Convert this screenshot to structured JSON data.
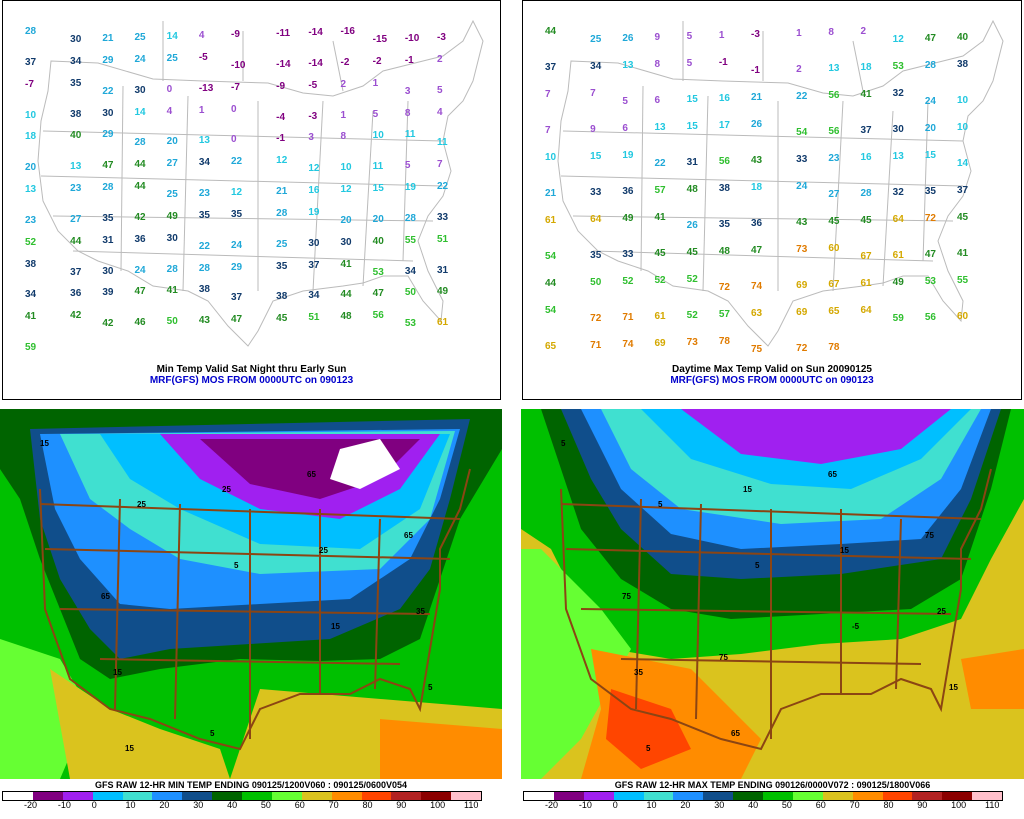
{
  "panels": {
    "min_mos": {
      "caption_line1": "Min Temp Valid Sat Night thru Early Sun",
      "caption_line2": "MRF(GFS) MOS FROM 0000UTC on 090123"
    },
    "max_mos": {
      "caption_line1": "Daytime Max Temp Valid on Sun 20090125",
      "caption_line2": "MRF(GFS) MOS FROM 0000UTC on 090123"
    },
    "min_raw": {
      "title": "GFS RAW 12-HR MIN TEMP ENDING 090125/1200V060 : 090125/0600V054"
    },
    "max_raw": {
      "title": "GFS RAW 12-HR MAX TEMP ENDING 090126/0000V072 : 090125/1800V066"
    }
  },
  "colorbar": {
    "ticks": [
      "-20",
      "-10",
      "0",
      "10",
      "20",
      "30",
      "40",
      "50",
      "60",
      "70",
      "80",
      "90",
      "100",
      "110"
    ],
    "colors": [
      "#ffffff",
      "#800080",
      "#a020f0",
      "#00bfff",
      "#40e0d0",
      "#1e90ff",
      "#104e8b",
      "#006400",
      "#00c000",
      "#66ff33",
      "#dac31e",
      "#ff8c00",
      "#ff4500",
      "#b22222",
      "#8b0000",
      "#ffc0cb"
    ]
  },
  "min_stations": [
    {
      "t": "28"
    },
    {
      "t": "30"
    },
    {
      "t": "21"
    },
    {
      "t": "25"
    },
    {
      "t": "14"
    },
    {
      "t": "4"
    },
    {
      "t": "-9"
    },
    {
      "t": "-11"
    },
    {
      "t": "-14"
    },
    {
      "t": "-16"
    },
    {
      "t": "-15"
    },
    {
      "t": "-10"
    },
    {
      "t": "-3"
    },
    {
      "t": "37"
    },
    {
      "t": "34"
    },
    {
      "t": "29"
    },
    {
      "t": "24"
    },
    {
      "t": "25"
    },
    {
      "t": "-5"
    },
    {
      "t": "-10"
    },
    {
      "t": "-14"
    },
    {
      "t": "-14"
    },
    {
      "t": "-2"
    },
    {
      "t": "-2"
    },
    {
      "t": "-1"
    },
    {
      "t": "2"
    },
    {
      "t": "-7"
    },
    {
      "t": "35"
    },
    {
      "t": "22"
    },
    {
      "t": "30"
    },
    {
      "t": "0"
    },
    {
      "t": "-13"
    },
    {
      "t": "-7"
    },
    {
      "t": "-9"
    },
    {
      "t": "-5"
    },
    {
      "t": "2"
    },
    {
      "t": "1"
    },
    {
      "t": "3"
    },
    {
      "t": "5"
    },
    {
      "t": "10"
    },
    {
      "t": "38"
    },
    {
      "t": "30"
    },
    {
      "t": "14"
    },
    {
      "t": "4"
    },
    {
      "t": "1"
    },
    {
      "t": "0"
    },
    {
      "t": "-4"
    },
    {
      "t": "-3"
    },
    {
      "t": "1"
    },
    {
      "t": "5"
    },
    {
      "t": "8"
    },
    {
      "t": "4"
    },
    {
      "t": "18"
    },
    {
      "t": "40"
    },
    {
      "t": "29"
    },
    {
      "t": "28"
    },
    {
      "t": "20"
    },
    {
      "t": "13"
    },
    {
      "t": "0"
    },
    {
      "t": "-1"
    },
    {
      "t": "3"
    },
    {
      "t": "8"
    },
    {
      "t": "10"
    },
    {
      "t": "11"
    },
    {
      "t": "11"
    },
    {
      "t": "20"
    },
    {
      "t": "13"
    },
    {
      "t": "47"
    },
    {
      "t": "44"
    },
    {
      "t": "27"
    },
    {
      "t": "34"
    },
    {
      "t": "22"
    },
    {
      "t": "12"
    },
    {
      "t": "12"
    },
    {
      "t": "10"
    },
    {
      "t": "11"
    },
    {
      "t": "5"
    },
    {
      "t": "7"
    },
    {
      "t": "13"
    },
    {
      "t": "23"
    },
    {
      "t": "28"
    },
    {
      "t": "44"
    },
    {
      "t": "25"
    },
    {
      "t": "23"
    },
    {
      "t": "12"
    },
    {
      "t": "21"
    },
    {
      "t": "16"
    },
    {
      "t": "12"
    },
    {
      "t": "15"
    },
    {
      "t": "19"
    },
    {
      "t": "22"
    },
    {
      "t": "23"
    },
    {
      "t": "27"
    },
    {
      "t": "35"
    },
    {
      "t": "42"
    },
    {
      "t": "49"
    },
    {
      "t": "35"
    },
    {
      "t": "35"
    },
    {
      "t": "28"
    },
    {
      "t": "19"
    },
    {
      "t": "20"
    },
    {
      "t": "20"
    },
    {
      "t": "28"
    },
    {
      "t": "33"
    },
    {
      "t": "52"
    },
    {
      "t": "44"
    },
    {
      "t": "31"
    },
    {
      "t": "36"
    },
    {
      "t": "30"
    },
    {
      "t": "22"
    },
    {
      "t": "24"
    },
    {
      "t": "25"
    },
    {
      "t": "30"
    },
    {
      "t": "30"
    },
    {
      "t": "40"
    },
    {
      "t": "55"
    },
    {
      "t": "51"
    },
    {
      "t": "38"
    },
    {
      "t": "37"
    },
    {
      "t": "30"
    },
    {
      "t": "24"
    },
    {
      "t": "28"
    },
    {
      "t": "28"
    },
    {
      "t": "29"
    },
    {
      "t": "35"
    },
    {
      "t": "37"
    },
    {
      "t": "41"
    },
    {
      "t": "53"
    },
    {
      "t": "34"
    },
    {
      "t": "31"
    },
    {
      "t": "34"
    },
    {
      "t": "36"
    },
    {
      "t": "39"
    },
    {
      "t": "47"
    },
    {
      "t": "41"
    },
    {
      "t": "38"
    },
    {
      "t": "37"
    },
    {
      "t": "38"
    },
    {
      "t": "34"
    },
    {
      "t": "44"
    },
    {
      "t": "47"
    },
    {
      "t": "50"
    },
    {
      "t": "49"
    },
    {
      "t": "41"
    },
    {
      "t": "42"
    },
    {
      "t": "42"
    },
    {
      "t": "46"
    },
    {
      "t": "50"
    },
    {
      "t": "43"
    },
    {
      "t": "47"
    },
    {
      "t": "45"
    },
    {
      "t": "51"
    },
    {
      "t": "48"
    },
    {
      "t": "56"
    },
    {
      "t": "53"
    },
    {
      "t": "61"
    },
    {
      "t": "59"
    }
  ],
  "max_stations": [
    {
      "t": "44"
    },
    {
      "t": "25"
    },
    {
      "t": "26"
    },
    {
      "t": "9"
    },
    {
      "t": "5"
    },
    {
      "t": "1"
    },
    {
      "t": "-3"
    },
    {
      "t": "1"
    },
    {
      "t": "8"
    },
    {
      "t": "2"
    },
    {
      "t": "12"
    },
    {
      "t": "47"
    },
    {
      "t": "40"
    },
    {
      "t": "37"
    },
    {
      "t": "34"
    },
    {
      "t": "13"
    },
    {
      "t": "8"
    },
    {
      "t": "5"
    },
    {
      "t": "-1"
    },
    {
      "t": "-1"
    },
    {
      "t": "2"
    },
    {
      "t": "13"
    },
    {
      "t": "18"
    },
    {
      "t": "53"
    },
    {
      "t": "28"
    },
    {
      "t": "38"
    },
    {
      "t": "7"
    },
    {
      "t": "7"
    },
    {
      "t": "5"
    },
    {
      "t": "6"
    },
    {
      "t": "15"
    },
    {
      "t": "16"
    },
    {
      "t": "21"
    },
    {
      "t": "22"
    },
    {
      "t": "56"
    },
    {
      "t": "41"
    },
    {
      "t": "32"
    },
    {
      "t": "24"
    },
    {
      "t": "10"
    },
    {
      "t": "7"
    },
    {
      "t": "9"
    },
    {
      "t": "6"
    },
    {
      "t": "13"
    },
    {
      "t": "15"
    },
    {
      "t": "17"
    },
    {
      "t": "26"
    },
    {
      "t": "54"
    },
    {
      "t": "56"
    },
    {
      "t": "37"
    },
    {
      "t": "30"
    },
    {
      "t": "20"
    },
    {
      "t": "10"
    },
    {
      "t": "10"
    },
    {
      "t": "15"
    },
    {
      "t": "19"
    },
    {
      "t": "22"
    },
    {
      "t": "31"
    },
    {
      "t": "56"
    },
    {
      "t": "43"
    },
    {
      "t": "33"
    },
    {
      "t": "23"
    },
    {
      "t": "16"
    },
    {
      "t": "13"
    },
    {
      "t": "15"
    },
    {
      "t": "14"
    },
    {
      "t": "21"
    },
    {
      "t": "33"
    },
    {
      "t": "36"
    },
    {
      "t": "57"
    },
    {
      "t": "48"
    },
    {
      "t": "38"
    },
    {
      "t": "18"
    },
    {
      "t": "24"
    },
    {
      "t": "27"
    },
    {
      "t": "28"
    },
    {
      "t": "32"
    },
    {
      "t": "35"
    },
    {
      "t": "37"
    },
    {
      "t": "61"
    },
    {
      "t": "64"
    },
    {
      "t": "49"
    },
    {
      "t": "41"
    },
    {
      "t": "26"
    },
    {
      "t": "35"
    },
    {
      "t": "36"
    },
    {
      "t": "43"
    },
    {
      "t": "45"
    },
    {
      "t": "45"
    },
    {
      "t": "64"
    },
    {
      "t": "72"
    },
    {
      "t": "45"
    },
    {
      "t": "54"
    },
    {
      "t": "35"
    },
    {
      "t": "33"
    },
    {
      "t": "45"
    },
    {
      "t": "45"
    },
    {
      "t": "48"
    },
    {
      "t": "47"
    },
    {
      "t": "73"
    },
    {
      "t": "60"
    },
    {
      "t": "67"
    },
    {
      "t": "61"
    },
    {
      "t": "47"
    },
    {
      "t": "41"
    },
    {
      "t": "44"
    },
    {
      "t": "50"
    },
    {
      "t": "52"
    },
    {
      "t": "52"
    },
    {
      "t": "52"
    },
    {
      "t": "72"
    },
    {
      "t": "74"
    },
    {
      "t": "69"
    },
    {
      "t": "67"
    },
    {
      "t": "61"
    },
    {
      "t": "49"
    },
    {
      "t": "53"
    },
    {
      "t": "55"
    },
    {
      "t": "54"
    },
    {
      "t": "72"
    },
    {
      "t": "71"
    },
    {
      "t": "61"
    },
    {
      "t": "52"
    },
    {
      "t": "57"
    },
    {
      "t": "63"
    },
    {
      "t": "69"
    },
    {
      "t": "65"
    },
    {
      "t": "64"
    },
    {
      "t": "59"
    },
    {
      "t": "56"
    },
    {
      "t": "60"
    },
    {
      "t": "65"
    },
    {
      "t": "71"
    },
    {
      "t": "74"
    },
    {
      "t": "69"
    },
    {
      "t": "73"
    },
    {
      "t": "78"
    },
    {
      "t": "75"
    },
    {
      "t": "72"
    },
    {
      "t": "78"
    }
  ],
  "raw_min_contour_labels": [
    "15",
    "25",
    "5",
    "15",
    "5",
    "15",
    "25",
    "25",
    "35",
    "15",
    "5",
    "65",
    "65",
    "65"
  ],
  "raw_max_contour_labels": [
    "5",
    "5",
    "5",
    "-5",
    "15",
    "5",
    "15",
    "15",
    "25",
    "35",
    "65",
    "65",
    "75",
    "75",
    "75"
  ]
}
